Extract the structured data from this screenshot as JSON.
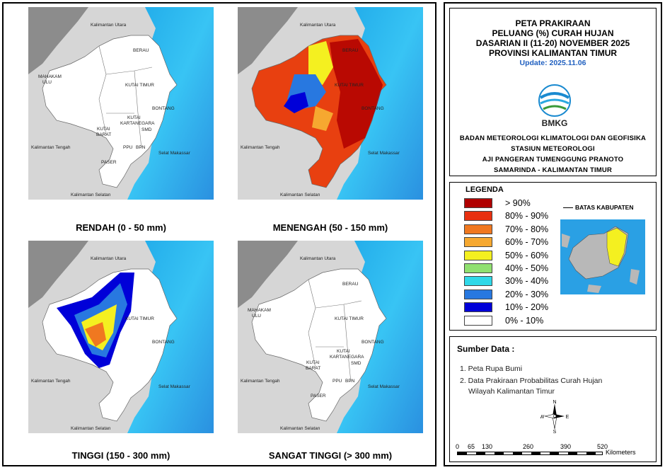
{
  "maps": [
    {
      "caption": "RENDAH (0 - 50 mm)"
    },
    {
      "caption": "MENENGAH (50 - 150 mm)"
    },
    {
      "caption": "TINGGI (150 - 300 mm)"
    },
    {
      "caption": "SANGAT TINGGI (> 300 mm)"
    }
  ],
  "map_labels": {
    "kaltara": "Kalimantan Utara",
    "berau": "BERAU",
    "mahakam": "MAHAKAM",
    "ulu": "ULU",
    "kutai_timur": "KUTAI TIMUR",
    "kutai": "KUTAI",
    "kartanegara": "KARTANEGARA",
    "bontang": "BONTANG",
    "kutai_barat": "KUTAI",
    "barat": "BARAT",
    "smd": "SMD",
    "kalteng": "Kalimantan Tengah",
    "ppu": "PPU",
    "bpn": "BPN",
    "selat": "Selat Makassar",
    "paser": "PASER",
    "kalsel": "Kalimantan Selatan"
  },
  "title": {
    "lines": [
      "PETA PRAKIRAAN",
      "PELUANG (%) CURAH HUJAN",
      "DASARIAN II (11-20) NOVEMBER 2025",
      "PROVINSI KALIMANTAN TIMUR"
    ],
    "update": "Update: 2025.11.06",
    "logo_text": "BMKG",
    "org_lines": [
      "BADAN METEOROLOGI KLIMATOLOGI DAN GEOFISIKA",
      "STASIUN METEOROLOGI",
      "AJI PANGERAN TUMENGGUNG PRANOTO",
      "SAMARINDA - KALIMANTAN TIMUR"
    ]
  },
  "legend": {
    "title": "LEGENDA",
    "items": [
      {
        "label": "> 90%",
        "color": "#b00000"
      },
      {
        "label": "80% - 90%",
        "color": "#e83010"
      },
      {
        "label": "70% - 80%",
        "color": "#f07820"
      },
      {
        "label": "60% - 70%",
        "color": "#f6a830"
      },
      {
        "label": "50% - 60%",
        "color": "#f4f020"
      },
      {
        "label": "40% - 50%",
        "color": "#90e070"
      },
      {
        "label": "30% - 40%",
        "color": "#30d8e8"
      },
      {
        "label": "20% - 30%",
        "color": "#2878e0"
      },
      {
        "label": "10% - 20%",
        "color": "#0000d8"
      },
      {
        "label": "0% - 10%",
        "color": "#ffffff"
      }
    ],
    "boundary_label": "BATAS KABUPATEN"
  },
  "source": {
    "title": "Sumber Data :",
    "items": [
      "1. Peta Rupa Bumi",
      "2. Data Prakiraan Probabilitas Curah Hujan",
      "Wilayah Kalimantan Timur"
    ]
  },
  "compass": {
    "n": "N",
    "s": "S",
    "e": "E",
    "w": "W"
  },
  "scale": {
    "ticks": [
      "0",
      "65",
      "130",
      "260",
      "390",
      "520"
    ],
    "unit": "Kilometers"
  },
  "colors": {
    "sea_light": "#40c8f0",
    "sea_mid": "#2890e8",
    "land_gray": "#999999",
    "province": "#ffffff"
  }
}
